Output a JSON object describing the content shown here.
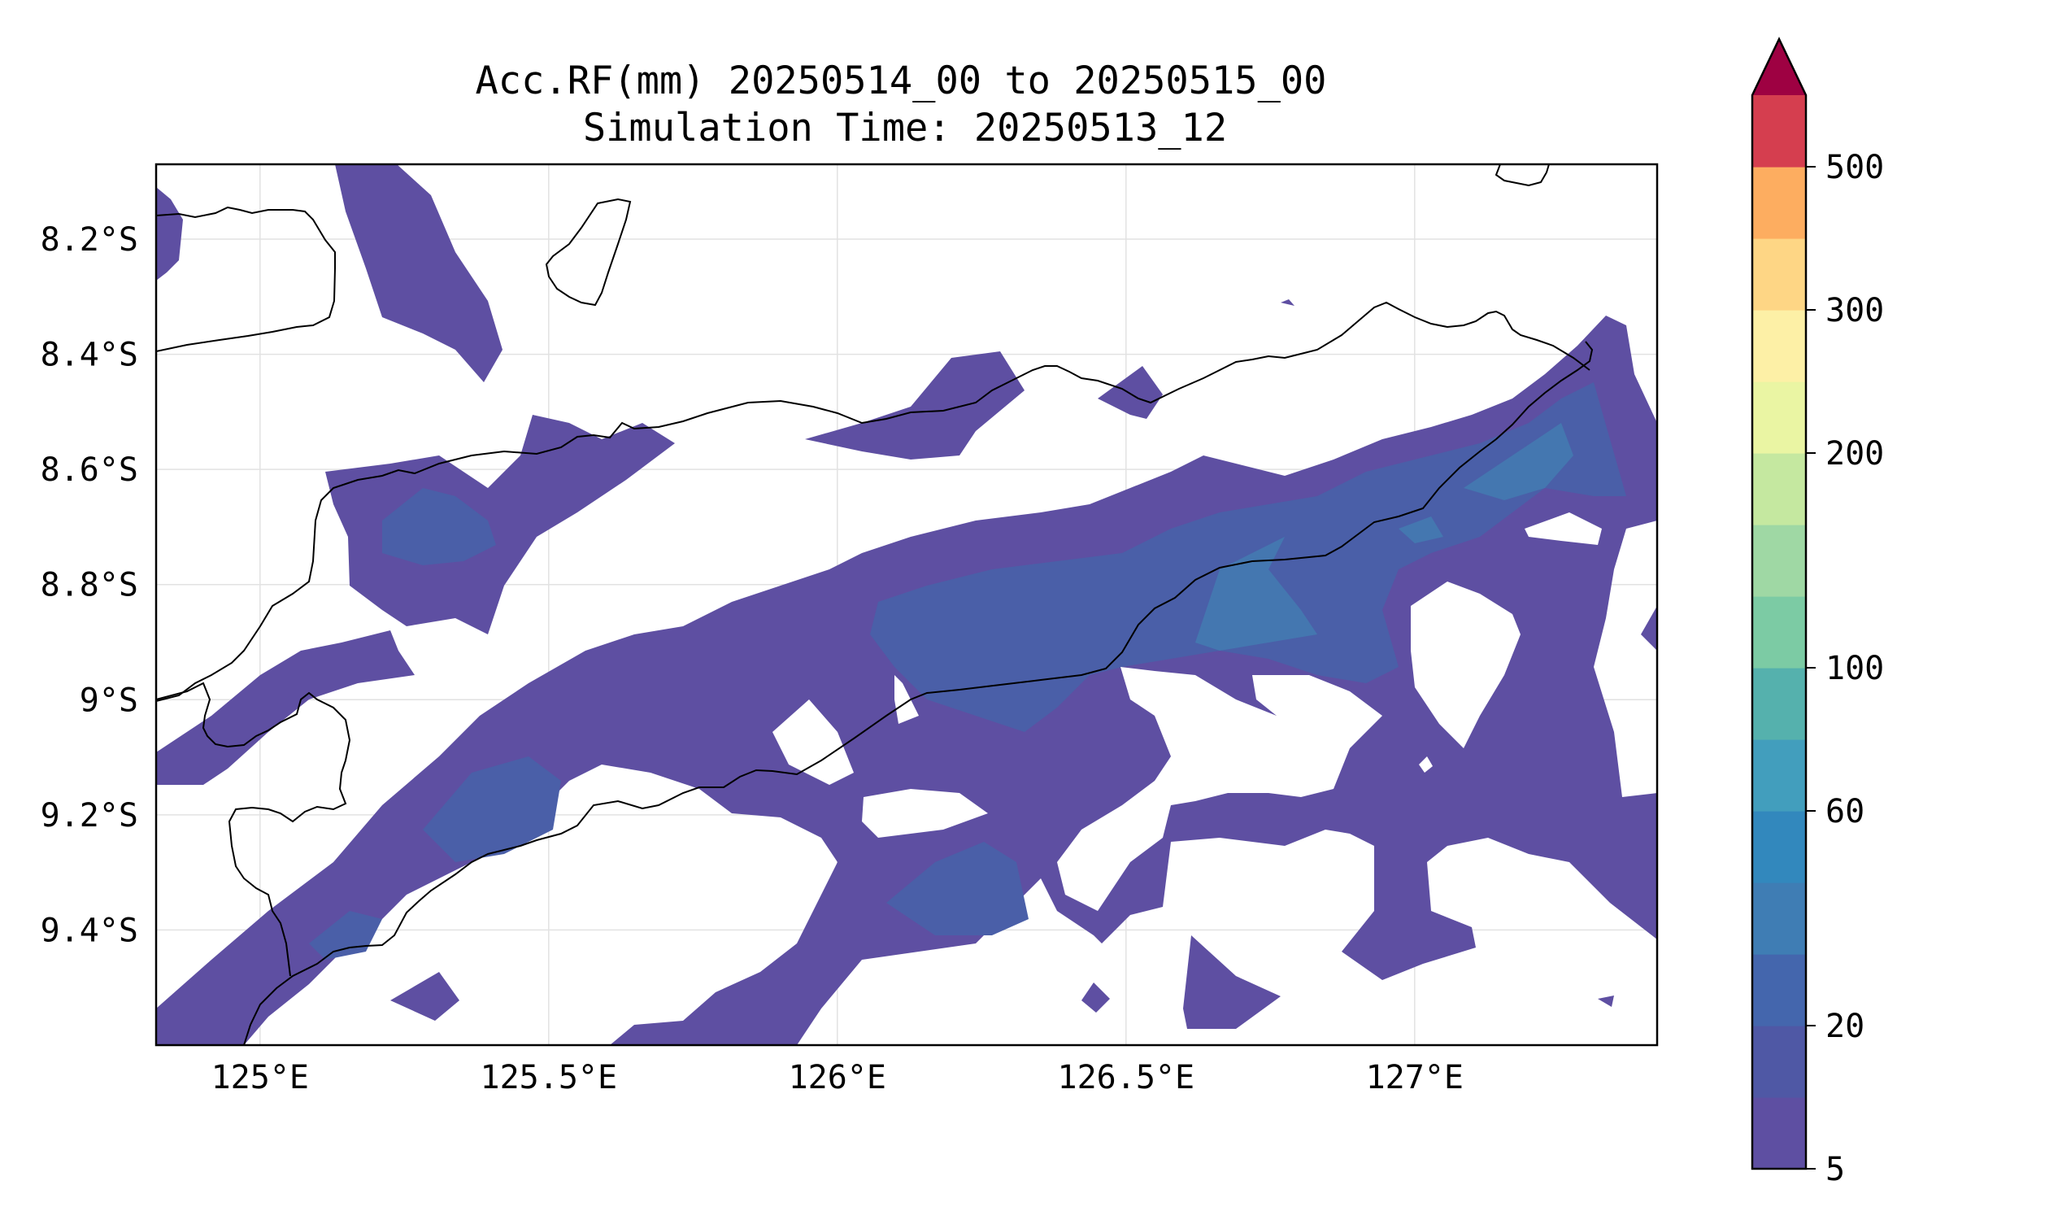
{
  "title": "Acc.RF(mm) 20250514_00 to 20250515_00",
  "subtitle": "Simulation Time: 20250513_12",
  "map": {
    "extent": {
      "lon": [
        124.82,
        127.42
      ],
      "lat": [
        -9.6,
        -8.07
      ]
    },
    "lon_ticks": [
      {
        "value": 125.0,
        "label": "125°E"
      },
      {
        "value": 125.5,
        "label": "125.5°E"
      },
      {
        "value": 126.0,
        "label": "126°E"
      },
      {
        "value": 126.5,
        "label": "126.5°E"
      },
      {
        "value": 127.0,
        "label": "127°E"
      }
    ],
    "lat_ticks": [
      {
        "value": -8.2,
        "label": "8.2°S"
      },
      {
        "value": -8.4,
        "label": "8.4°S"
      },
      {
        "value": -8.6,
        "label": "8.6°S"
      },
      {
        "value": -8.8,
        "label": "8.8°S"
      },
      {
        "value": -9.0,
        "label": "9°S"
      },
      {
        "value": -9.2,
        "label": "9.2°S"
      },
      {
        "value": -9.4,
        "label": "9.4°S"
      }
    ],
    "gridlines": true,
    "field_colors": {
      "low": "#5e4fa2",
      "mid": "#4a5fa8",
      "high": "#4477b0"
    }
  },
  "colorbar": {
    "levels": [
      "5",
      "",
      "20",
      "",
      "",
      "60",
      "",
      "100",
      "",
      "",
      "200",
      "",
      "300",
      "",
      "500"
    ],
    "labels": [
      "5",
      "20",
      "60",
      "100",
      "200",
      "300",
      "500"
    ],
    "colors": [
      "#5e4fa2",
      "#4f58a5",
      "#4466ad",
      "#3f7db4",
      "#3288bd",
      "#429ebd",
      "#55b1ad",
      "#7ccba4",
      "#9fd8a4",
      "#c5e8a0",
      "#eaf5a3",
      "#fdf0a6",
      "#fed685",
      "#fdad60",
      "#d53e4f"
    ],
    "extend_color": "#9e0142"
  }
}
